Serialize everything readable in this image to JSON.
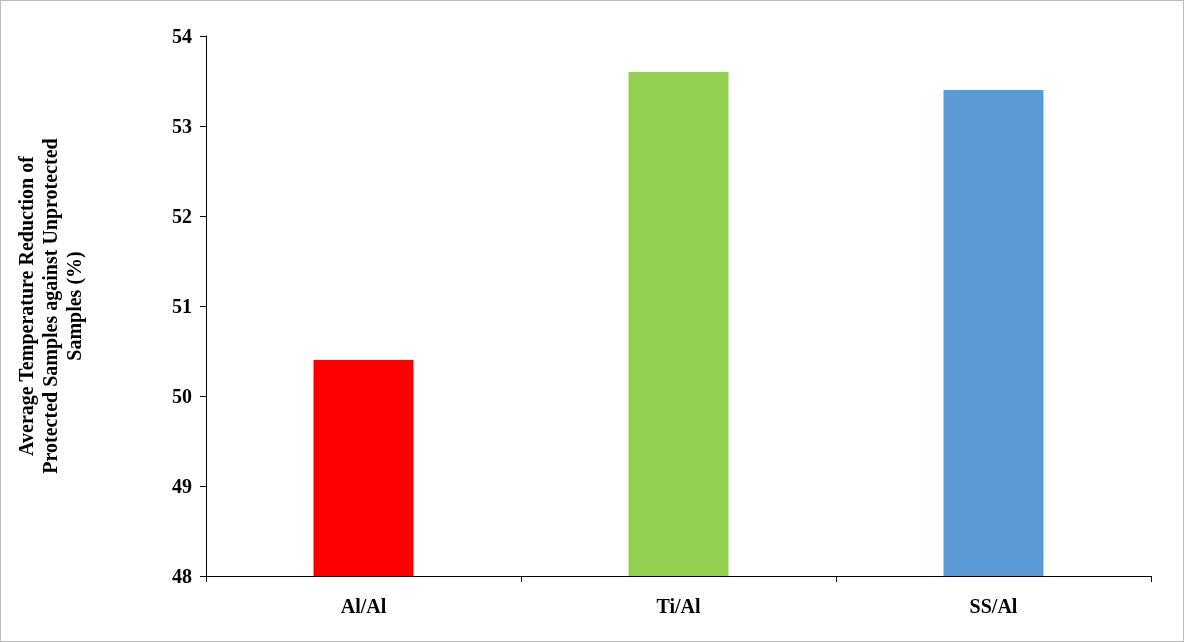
{
  "chart_data": {
    "type": "bar",
    "ylabel": "Average Temperature Reduction of Protected Samples against Unprotected Samples (%)",
    "categories": [
      "Al/Al",
      "Ti/Al",
      "SS/Al"
    ],
    "values": [
      50.4,
      53.6,
      53.4
    ],
    "colors": [
      "#ff0000",
      "#92d050",
      "#5b9bd5"
    ],
    "ylim": [
      48,
      54
    ],
    "yticks": [
      48,
      49,
      50,
      51,
      52,
      53,
      54
    ],
    "grid": false
  }
}
